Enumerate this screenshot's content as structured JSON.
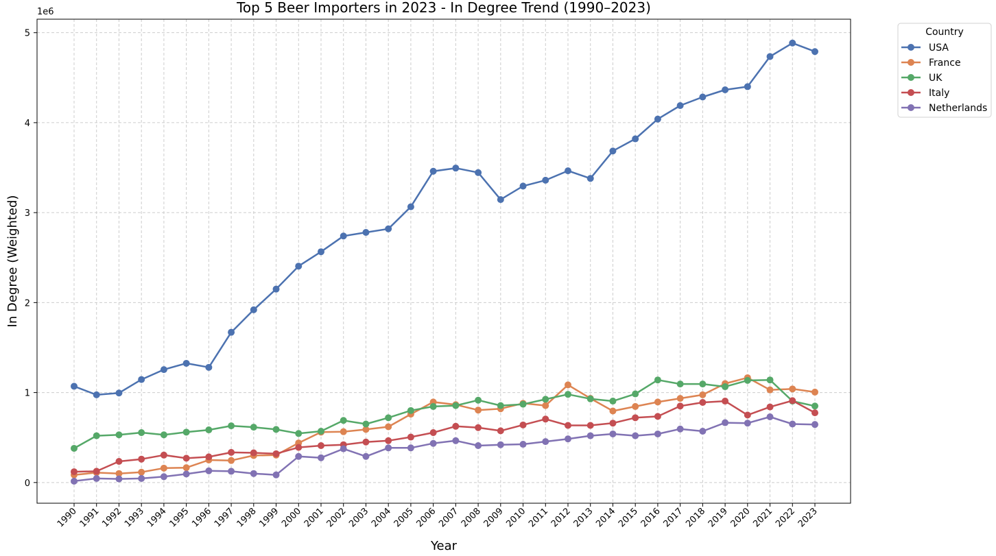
{
  "chart_data": {
    "type": "line",
    "title": "Top 5 Beer Importers in 2023 - In Degree Trend (1990–2023)",
    "xlabel": "Year",
    "ylabel": "In Degree (Weighted)",
    "y_offset_label": "1e6",
    "ylim": [
      -230000,
      5150000
    ],
    "y_ticks": [
      0,
      1000000,
      2000000,
      3000000,
      4000000,
      5000000
    ],
    "y_tick_labels": [
      "0",
      "1",
      "2",
      "3",
      "4",
      "5"
    ],
    "grid": true,
    "legend": {
      "title": "Country",
      "placement": "outside-top-right"
    },
    "x": [
      "1990",
      "1991",
      "1992",
      "1993",
      "1994",
      "1995",
      "1996",
      "1997",
      "1998",
      "1999",
      "2000",
      "2001",
      "2002",
      "2003",
      "2004",
      "2005",
      "2006",
      "2007",
      "2008",
      "2009",
      "2010",
      "2011",
      "2012",
      "2013",
      "2014",
      "2015",
      "2016",
      "2017",
      "2018",
      "2019",
      "2020",
      "2021",
      "2022",
      "2023"
    ],
    "series": [
      {
        "name": "USA",
        "color": "#4c72b0",
        "values": [
          1070000,
          975000,
          995000,
          1145000,
          1255000,
          1325000,
          1280000,
          1670000,
          1920000,
          2150000,
          2405000,
          2565000,
          2740000,
          2780000,
          2820000,
          3065000,
          3460000,
          3495000,
          3445000,
          3145000,
          3295000,
          3360000,
          3465000,
          3380000,
          3685000,
          3820000,
          4040000,
          4190000,
          4285000,
          4365000,
          4400000,
          4735000,
          4885000,
          4790000
        ]
      },
      {
        "name": "France",
        "color": "#dd8452",
        "values": [
          85000,
          110000,
          100000,
          115000,
          160000,
          165000,
          250000,
          245000,
          300000,
          305000,
          440000,
          560000,
          565000,
          590000,
          620000,
          760000,
          895000,
          865000,
          805000,
          820000,
          880000,
          855000,
          1085000,
          935000,
          795000,
          845000,
          895000,
          935000,
          975000,
          1100000,
          1165000,
          1030000,
          1040000,
          1005000
        ]
      },
      {
        "name": "UK",
        "color": "#55a868",
        "values": [
          380000,
          520000,
          530000,
          555000,
          530000,
          560000,
          585000,
          630000,
          615000,
          590000,
          545000,
          570000,
          690000,
          650000,
          720000,
          800000,
          845000,
          855000,
          915000,
          855000,
          870000,
          925000,
          980000,
          930000,
          905000,
          985000,
          1140000,
          1095000,
          1095000,
          1065000,
          1135000,
          1140000,
          905000,
          850000
        ]
      },
      {
        "name": "Italy",
        "color": "#c44e52",
        "values": [
          120000,
          125000,
          235000,
          260000,
          305000,
          270000,
          285000,
          335000,
          330000,
          320000,
          390000,
          410000,
          420000,
          450000,
          465000,
          505000,
          555000,
          625000,
          610000,
          575000,
          640000,
          705000,
          635000,
          635000,
          660000,
          720000,
          735000,
          850000,
          890000,
          905000,
          750000,
          840000,
          910000,
          775000
        ]
      },
      {
        "name": "Netherlands",
        "color": "#8172b3",
        "values": [
          15000,
          45000,
          40000,
          45000,
          65000,
          95000,
          130000,
          125000,
          100000,
          85000,
          290000,
          275000,
          375000,
          290000,
          385000,
          385000,
          435000,
          465000,
          410000,
          420000,
          425000,
          455000,
          485000,
          520000,
          540000,
          520000,
          540000,
          595000,
          570000,
          665000,
          660000,
          730000,
          650000,
          645000
        ]
      }
    ]
  }
}
